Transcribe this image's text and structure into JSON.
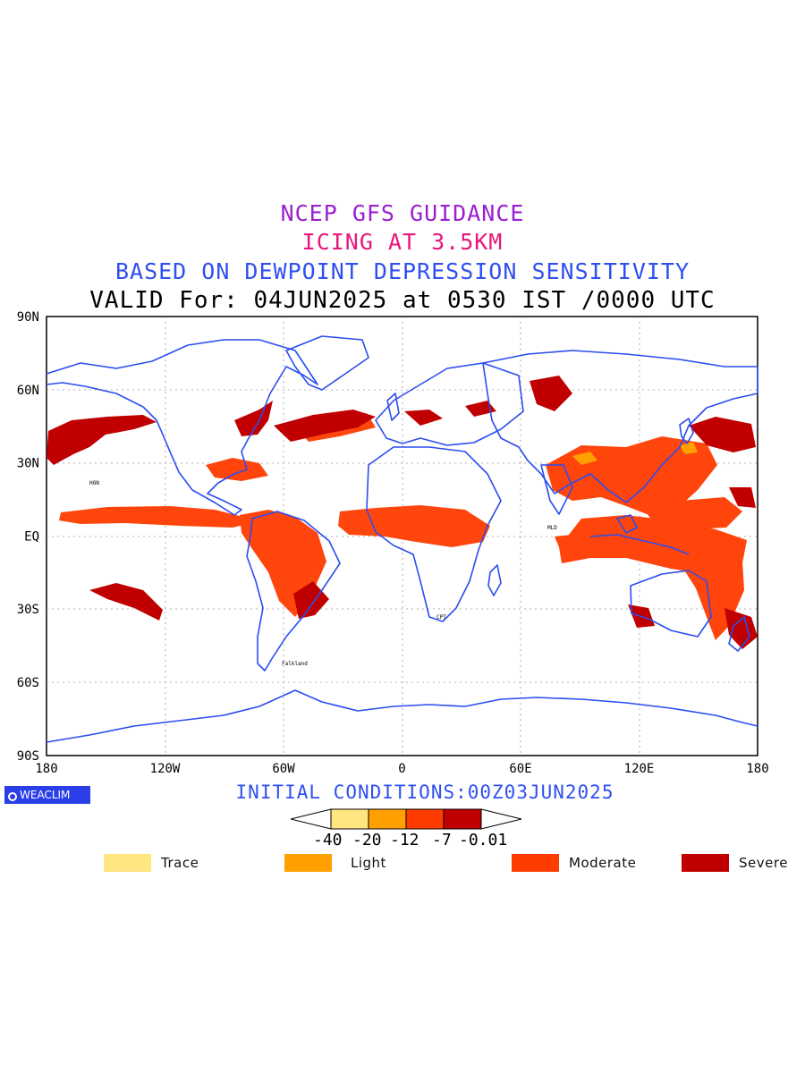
{
  "titles": {
    "line1": "NCEP GFS GUIDANCE",
    "line2": "ICING AT 3.5KM",
    "line3": "BASED ON DEWPOINT DEPRESSION SENSITIVITY",
    "line4": "VALID For: 04JUN2025 at 0530 IST /0000 UTC"
  },
  "colors": {
    "line1": "#9b1fd0",
    "line2": "#e8177e",
    "line3": "#2f4ff0",
    "line4": "#000000",
    "coast": "#2a4df0",
    "trace": "#ffe680",
    "light": "#ffa000",
    "moderate": "#ff3c00",
    "severe": "#c00000"
  },
  "axes": {
    "y_ticks": [
      "90N",
      "60N",
      "30N",
      "EQ",
      "30S",
      "60S",
      "90S"
    ],
    "x_ticks": [
      "180",
      "120W",
      "60W",
      "0",
      "60E",
      "120E",
      "180"
    ]
  },
  "initial_conditions": "INITIAL CONDITIONS:00Z03JUN2025",
  "logo_text": "WEACLIM",
  "colorbar": {
    "labels": [
      "-40",
      "-20",
      "-12",
      "-7",
      "-0.01"
    ]
  },
  "legend": [
    {
      "label": "Trace",
      "color": "#ffe680"
    },
    {
      "label": "Light",
      "color": "#ffa000"
    },
    {
      "label": "Moderate",
      "color": "#ff3c00"
    },
    {
      "label": "Severe",
      "color": "#c00000"
    }
  ],
  "places": [
    "Falkland",
    "CPT",
    "HON",
    "MLD"
  ]
}
